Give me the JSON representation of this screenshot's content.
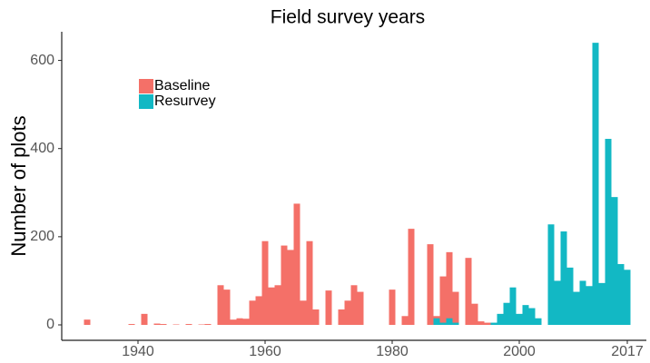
{
  "chart_data": {
    "type": "bar",
    "title": "Field survey years",
    "y_label": "Number of plots",
    "legend": "top-left",
    "series": [
      {
        "name": "Baseline",
        "color": "#f47068",
        "x": [
          1932,
          1939,
          1941,
          1943,
          1944,
          1946,
          1948,
          1950,
          1951,
          1953,
          1954,
          1955,
          1956,
          1957,
          1958,
          1959,
          1960,
          1961,
          1962,
          1963,
          1964,
          1965,
          1966,
          1967,
          1968,
          1970,
          1972,
          1973,
          1974,
          1975,
          1980,
          1982,
          1983,
          1986,
          1987,
          1988,
          1989,
          1990,
          1992,
          1993,
          1994,
          1995
        ],
        "values": [
          12,
          2,
          25,
          3,
          2,
          1,
          2,
          1,
          2,
          90,
          80,
          12,
          15,
          14,
          55,
          65,
          190,
          85,
          90,
          180,
          170,
          275,
          55,
          190,
          35,
          78,
          35,
          55,
          90,
          75,
          80,
          20,
          218,
          183,
          20,
          110,
          165,
          75,
          152,
          48,
          8,
          5
        ]
      },
      {
        "name": "Resurvey",
        "color": "#12b8c4",
        "x": [
          1987,
          1988,
          1989,
          1990,
          1996,
          1997,
          1998,
          1999,
          2000,
          2001,
          2002,
          2003,
          2005,
          2006,
          2007,
          2008,
          2009,
          2010,
          2011,
          2012,
          2013,
          2014,
          2015,
          2016,
          2017
        ],
        "values": [
          15,
          5,
          15,
          5,
          5,
          25,
          50,
          85,
          25,
          45,
          38,
          15,
          228,
          100,
          212,
          130,
          75,
          100,
          88,
          640,
          95,
          422,
          290,
          138,
          125
        ]
      }
    ],
    "xlim": [
      1928,
      2020
    ],
    "xticks": [
      1940,
      1960,
      1980,
      2000,
      2017
    ],
    "ylim": [
      -35,
      665
    ],
    "yticks": [
      0,
      200,
      400,
      600
    ]
  }
}
